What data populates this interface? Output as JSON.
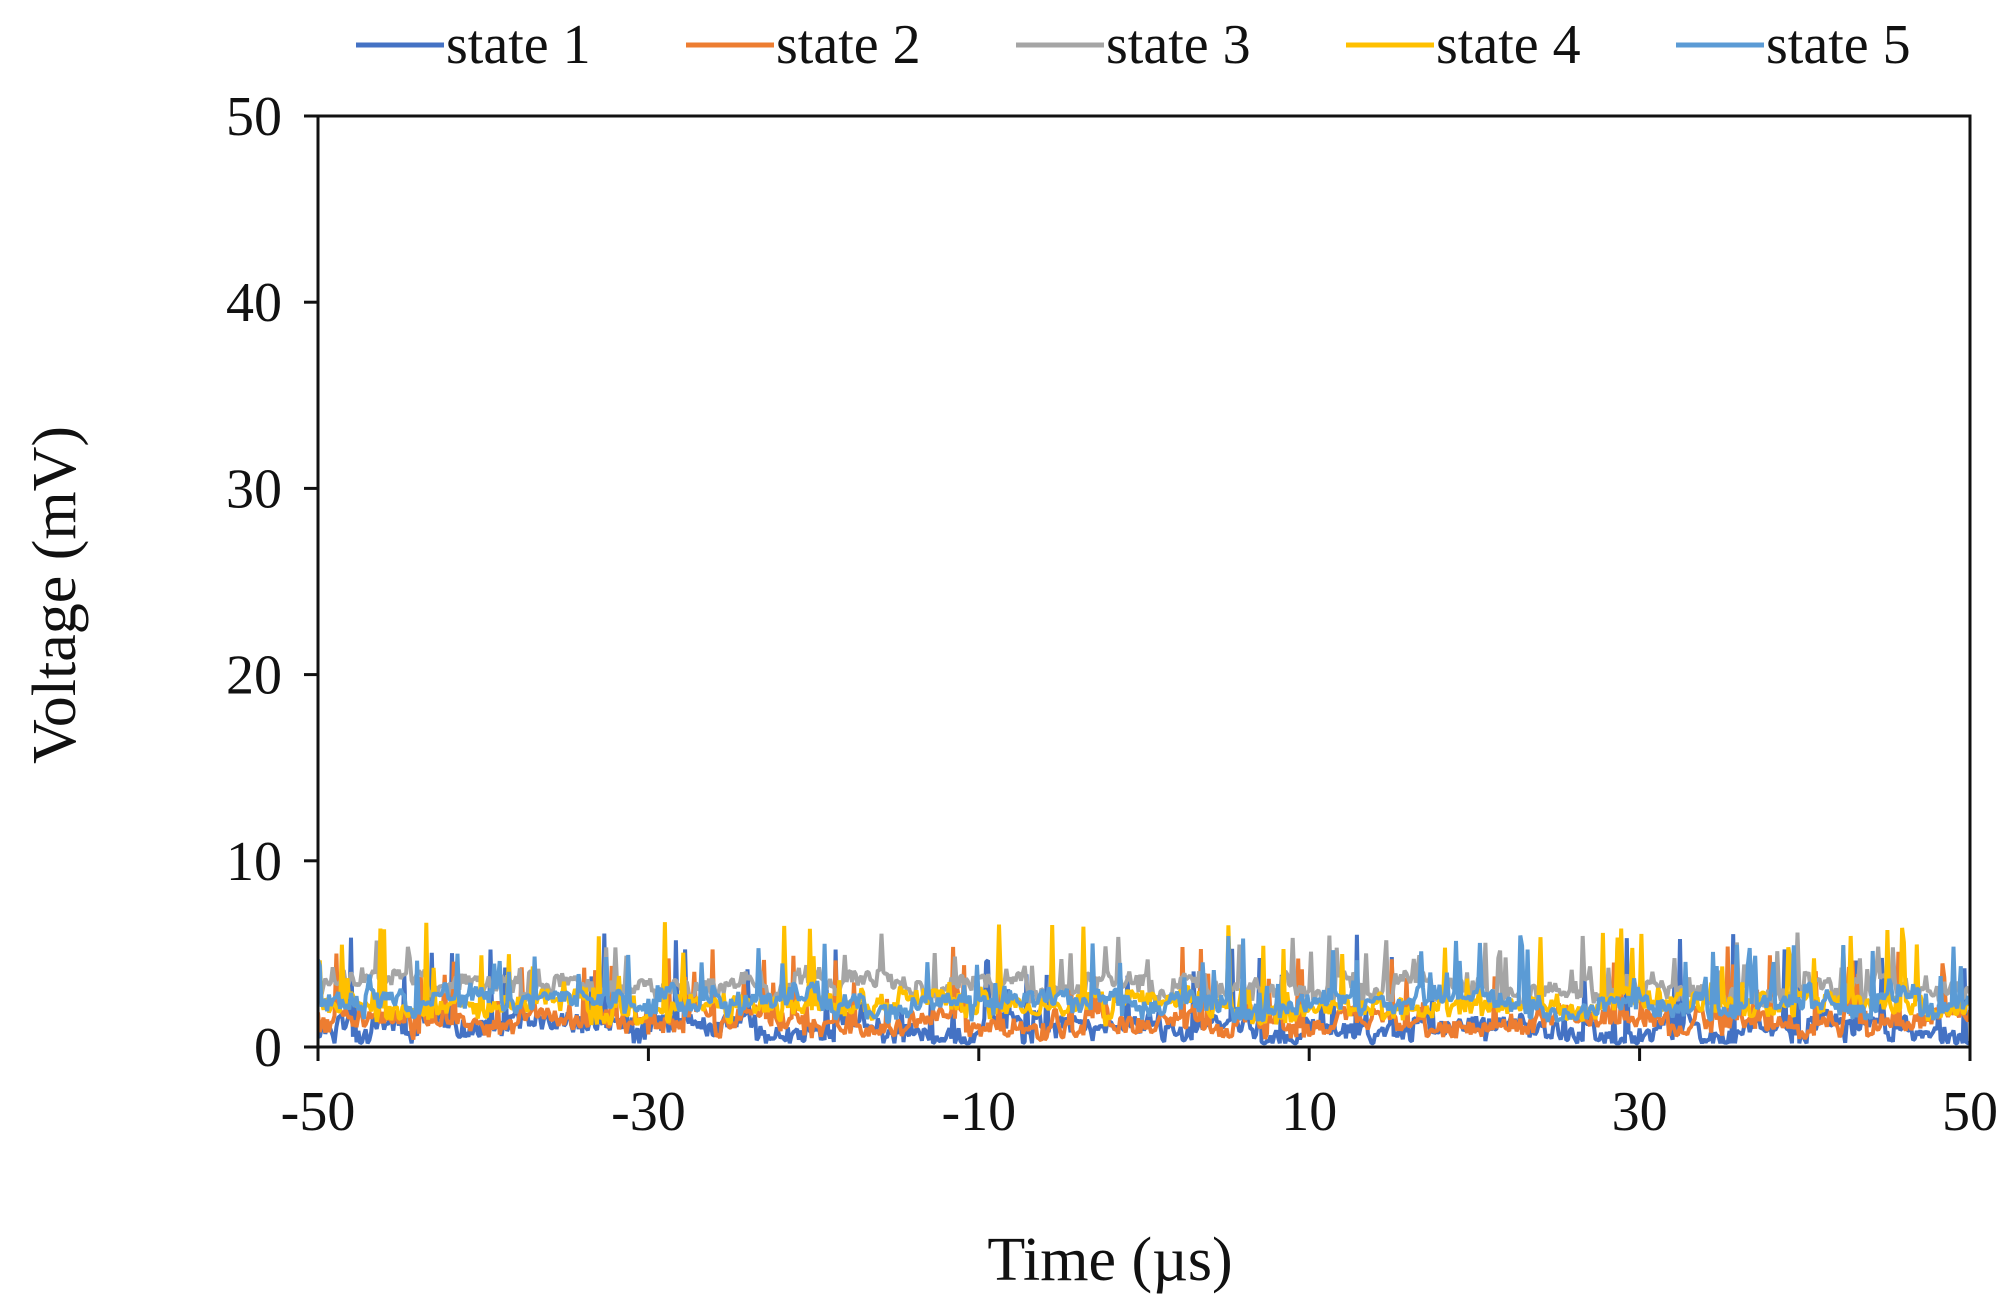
{
  "chart_data": {
    "type": "line",
    "title": "",
    "xlabel": "Time (µs)",
    "ylabel": "Voltage (mV)",
    "xlim": [
      -50,
      50
    ],
    "ylim": [
      0,
      50
    ],
    "xticks": [
      -50,
      -30,
      -10,
      10,
      30,
      50
    ],
    "yticks": [
      0,
      10,
      20,
      30,
      40,
      50
    ],
    "xtick_labels": [
      "-50",
      "-30",
      "-10",
      "10",
      "30",
      "50"
    ],
    "ytick_labels": [
      "0",
      "10",
      "20",
      "30",
      "40",
      "50"
    ],
    "grid": false,
    "legend_position": "top",
    "series": [
      {
        "name": "state 1",
        "color": "#4472C4",
        "base": 0.8,
        "amplitude": 5.5
      },
      {
        "name": "state 2",
        "color": "#ED7D31",
        "base": 1.2,
        "amplitude": 4.2
      },
      {
        "name": "state 3",
        "color": "#A5A5A5",
        "base": 3.0,
        "amplitude": 3.2
      },
      {
        "name": "state 4",
        "color": "#FFC000",
        "base": 2.0,
        "amplitude": 4.8
      },
      {
        "name": "state 5",
        "color": "#5B9BD5",
        "base": 2.2,
        "amplitude": 3.8
      }
    ]
  }
}
